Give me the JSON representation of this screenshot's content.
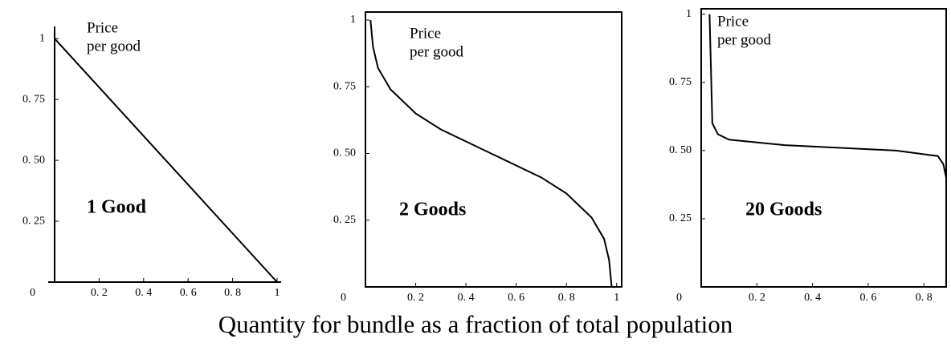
{
  "chart_data": [
    {
      "type": "line",
      "title": "1 Good",
      "annotation": [
        "Price",
        "per good"
      ],
      "frame": false,
      "color": "#000000",
      "x": [
        0,
        1
      ],
      "values": [
        1,
        0
      ],
      "xlim": [
        0,
        1
      ],
      "ylim": [
        0,
        1.05
      ],
      "xticks": [
        {
          "value": 0.2,
          "label": "0. 2"
        },
        {
          "value": 0.4,
          "label": "0. 4"
        },
        {
          "value": 0.6,
          "label": "0. 6"
        },
        {
          "value": 0.8,
          "label": "0. 8"
        },
        1
      ],
      "yticks": [
        0,
        {
          "value": 0.25,
          "label": "0. 25"
        },
        {
          "value": 0.5,
          "label": "0. 50"
        },
        {
          "value": 0.75,
          "label": "0. 75"
        },
        1
      ]
    },
    {
      "type": "line",
      "title": "2 Goods",
      "annotation": [
        "Price",
        "per good"
      ],
      "frame": true,
      "color": "#000000",
      "x": [
        0.02,
        0.03,
        0.05,
        0.1,
        0.2,
        0.3,
        0.4,
        0.5,
        0.6,
        0.7,
        0.8,
        0.9,
        0.95,
        0.97,
        0.98
      ],
      "values": [
        1,
        0.9,
        0.82,
        0.74,
        0.65,
        0.59,
        0.545,
        0.5,
        0.455,
        0.41,
        0.35,
        0.26,
        0.18,
        0.1,
        0
      ],
      "xlim": [
        0,
        1.02
      ],
      "ylim": [
        0,
        1.03
      ],
      "xticks": [
        {
          "value": 0.2,
          "label": "0. 2"
        },
        {
          "value": 0.4,
          "label": "0. 4"
        },
        {
          "value": 0.6,
          "label": "0. 6"
        },
        {
          "value": 0.8,
          "label": "0. 8"
        },
        1
      ],
      "yticks": [
        0,
        {
          "value": 0.25,
          "label": "0. 25"
        },
        {
          "value": 0.5,
          "label": "0. 50"
        },
        {
          "value": 0.75,
          "label": "0. 75"
        },
        1
      ]
    },
    {
      "type": "line",
      "title": "20 Goods",
      "annotation": [
        "Price",
        "per good"
      ],
      "frame": true,
      "color": "#000000",
      "x": [
        0.03,
        0.035,
        0.04,
        0.06,
        0.1,
        0.3,
        0.5,
        0.7,
        0.85,
        0.87,
        0.88
      ],
      "values": [
        1,
        0.8,
        0.6,
        0.56,
        0.54,
        0.52,
        0.51,
        0.5,
        0.48,
        0.45,
        0.4
      ],
      "xlim": [
        0,
        0.88
      ],
      "ylim": [
        0,
        1.02
      ],
      "xticks": [
        {
          "value": 0.2,
          "label": "0. 2"
        },
        {
          "value": 0.4,
          "label": "0. 4"
        },
        {
          "value": 0.6,
          "label": "0. 6"
        },
        {
          "value": 0.8,
          "label": "0. 8"
        }
      ],
      "yticks": [
        0,
        {
          "value": 0.25,
          "label": "0. 25"
        },
        {
          "value": 0.5,
          "label": "0. 50"
        },
        {
          "value": 0.75,
          "label": "0. 75"
        },
        1
      ]
    }
  ],
  "caption": "Quantity for bundle as a fraction of total population"
}
